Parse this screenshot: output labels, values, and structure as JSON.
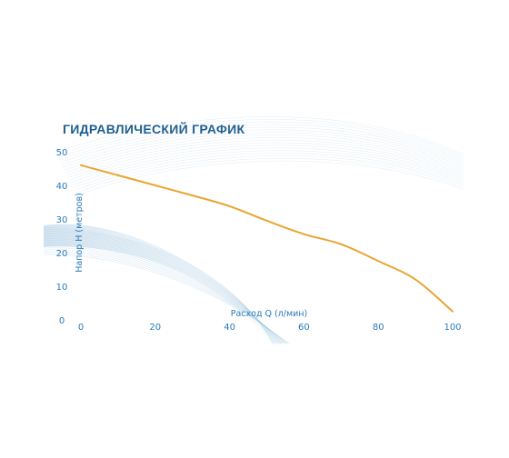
{
  "chart_data": {
    "type": "line",
    "title": "ГИДРАВЛИЧЕСКИЙ ГРАФИК",
    "xlabel": "Расход Q (л/мин)",
    "ylabel": "Напор H (метров)",
    "xlim": [
      0,
      100
    ],
    "ylim": [
      0,
      50
    ],
    "xticks": [
      0,
      20,
      40,
      60,
      80,
      100
    ],
    "yticks": [
      0,
      10,
      20,
      30,
      40,
      50
    ],
    "grid": false,
    "series": [
      {
        "x": [
          0,
          10,
          20,
          30,
          40,
          50,
          60,
          70,
          80,
          90,
          100
        ],
        "y": [
          46,
          43,
          40,
          37,
          33.8,
          29.5,
          25.5,
          22.5,
          17.5,
          12,
          2.5
        ],
        "color": "#e8a531"
      }
    ],
    "colors": {
      "title": "#1d5d8e",
      "ticks": "#2a7ab8",
      "curve": "#e8a531",
      "decor": "#8fb8d8"
    }
  }
}
